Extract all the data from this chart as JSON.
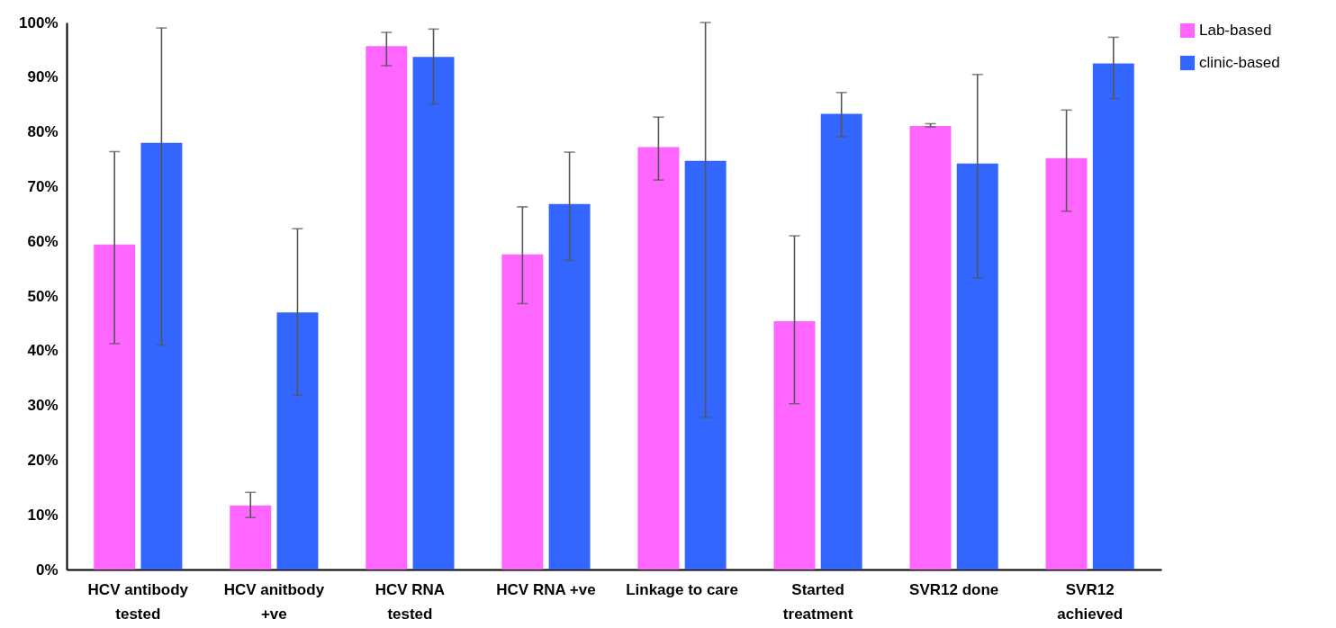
{
  "chart_data": {
    "type": "bar",
    "categories": [
      "HCV antibody\ntested",
      "HCV anitbody\n+ve",
      "HCV RNA\ntested",
      "HCV RNA +ve",
      "Linkage to care",
      "Started\ntreatment",
      "SVR12 done",
      "SVR12\nachieved"
    ],
    "series": [
      {
        "name": "Lab-based",
        "color": "#ff66ff",
        "values": [
          59.4,
          11.7,
          95.7,
          57.6,
          77.2,
          45.4,
          81.1,
          75.2
        ],
        "errors": [
          [
            41.3,
            76.4
          ],
          [
            9.5,
            14.1
          ],
          [
            92.1,
            98.2
          ],
          [
            48.6,
            66.3
          ],
          [
            71.2,
            82.7
          ],
          [
            30.3,
            61.0
          ],
          [
            80.9,
            81.5
          ],
          [
            65.5,
            84.0
          ]
        ]
      },
      {
        "name": "clinic-based",
        "color": "#3366ff",
        "values": [
          78.0,
          47.0,
          93.7,
          66.8,
          74.7,
          83.3,
          74.2,
          92.5
        ],
        "errors": [
          [
            41.0,
            99.0
          ],
          [
            31.9,
            62.3
          ],
          [
            85.1,
            98.8
          ],
          [
            56.5,
            76.3
          ],
          [
            27.8,
            100
          ],
          [
            79.1,
            87.2
          ],
          [
            53.3,
            90.5
          ],
          [
            86.1,
            97.3
          ]
        ]
      }
    ],
    "ylim": [
      0,
      100
    ],
    "yticks": [
      {
        "value": 0,
        "label": "0%"
      },
      {
        "value": 10,
        "label": "10%"
      },
      {
        "value": 20,
        "label": "20%"
      },
      {
        "value": 30,
        "label": "30%"
      },
      {
        "value": 40,
        "label": "40%"
      },
      {
        "value": 50,
        "label": "50%"
      },
      {
        "value": 60,
        "label": "60%"
      },
      {
        "value": 70,
        "label": "70%"
      },
      {
        "value": 80,
        "label": "80%"
      },
      {
        "value": 90,
        "label": "90%"
      },
      {
        "value": 100,
        "label": "100%"
      }
    ],
    "grid": false,
    "legend": "right"
  }
}
